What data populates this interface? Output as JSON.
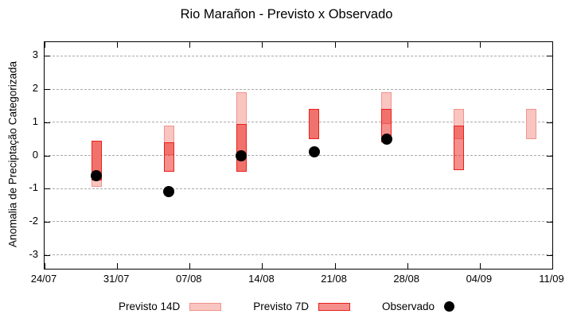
{
  "chart_data": {
    "type": "bar",
    "title": "Rio Marañon - Previsto x Observado",
    "ylabel": "Anomalia de Preciptação Categorizada",
    "ylim": [
      -3.4,
      3.4
    ],
    "grid": true,
    "legend_position": "bottom",
    "y_ticks": [
      3,
      2,
      1,
      0,
      -1,
      -2,
      -3
    ],
    "x_ticks": [
      {
        "day": 0,
        "label": "24/07"
      },
      {
        "day": 7,
        "label": "31/07"
      },
      {
        "day": 14,
        "label": "07/08"
      },
      {
        "day": 21,
        "label": "14/08"
      },
      {
        "day": 28,
        "label": "21/08"
      },
      {
        "day": 35,
        "label": "28/08"
      },
      {
        "day": 42,
        "label": "04/09"
      },
      {
        "day": 49,
        "label": "11/09"
      }
    ],
    "series": [
      {
        "name": "Previsto 14D",
        "type": "range-bar",
        "fill": "#F9C5C1",
        "border": "#F2938C",
        "points": [
          {
            "date": "29/07",
            "day": 5,
            "low": -0.95,
            "high": 0.45
          },
          {
            "date": "05/08",
            "day": 12,
            "low": 0.0,
            "high": 0.9
          },
          {
            "date": "12/08",
            "day": 19,
            "low": -0.5,
            "high": 1.9
          },
          {
            "date": "19/08",
            "day": 26,
            "low": 0.5,
            "high": 1.4
          },
          {
            "date": "26/08",
            "day": 33,
            "low": 0.95,
            "high": 1.9
          },
          {
            "date": "02/09",
            "day": 40,
            "low": 0.5,
            "high": 1.4
          },
          {
            "date": "09/09",
            "day": 47,
            "low": 0.5,
            "high": 1.4
          }
        ]
      },
      {
        "name": "Previsto 7D",
        "type": "range-bar",
        "fill": "rgba(233,32,26,0.5)",
        "border": "#E9201A",
        "points": [
          {
            "date": "29/07",
            "day": 5,
            "low": -0.75,
            "high": 0.45
          },
          {
            "date": "05/08",
            "day": 12,
            "low": -0.5,
            "high": 0.4
          },
          {
            "date": "12/08",
            "day": 19,
            "low": -0.5,
            "high": 0.95
          },
          {
            "date": "19/08",
            "day": 26,
            "low": 0.5,
            "high": 1.4
          },
          {
            "date": "26/08",
            "day": 33,
            "low": 0.4,
            "high": 1.4
          },
          {
            "date": "02/09",
            "day": 40,
            "low": -0.45,
            "high": 0.9
          }
        ]
      },
      {
        "name": "Observado",
        "type": "scatter",
        "color": "#000000",
        "points": [
          {
            "date": "29/07",
            "day": 5,
            "value": -0.6
          },
          {
            "date": "05/08",
            "day": 12,
            "value": -1.1
          },
          {
            "date": "12/08",
            "day": 19,
            "value": 0.0
          },
          {
            "date": "19/08",
            "day": 26,
            "value": 0.1
          },
          {
            "date": "26/08",
            "day": 33,
            "value": 0.5
          }
        ]
      }
    ]
  }
}
